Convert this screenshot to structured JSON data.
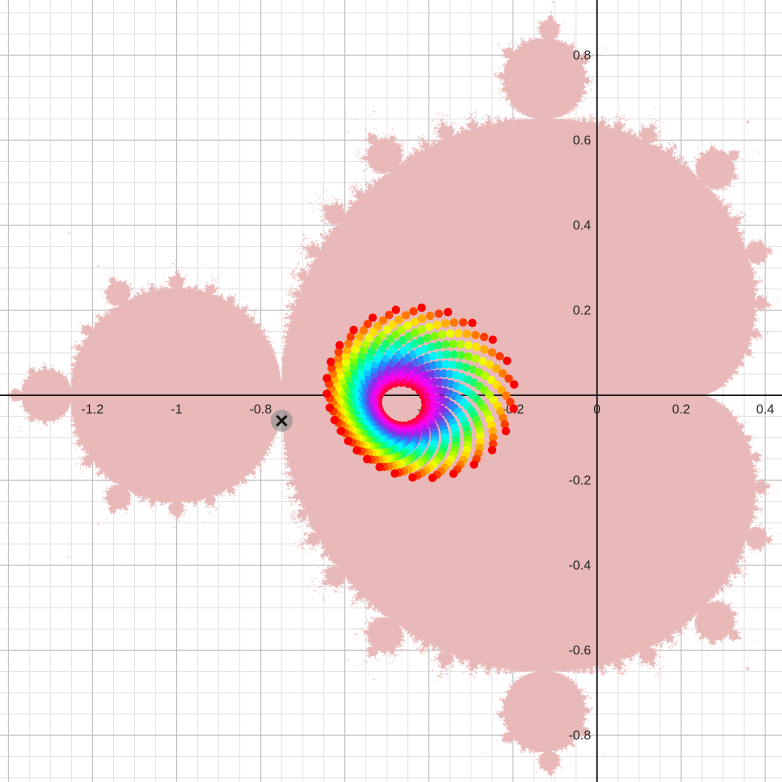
{
  "chart_data": {
    "type": "scatter",
    "title": "",
    "xlabel": "",
    "ylabel": "",
    "xlim": [
      -1.42,
      0.44
    ],
    "ylim": [
      -0.91,
      0.93
    ],
    "grid": "on",
    "x_ticks": [
      "-1.2",
      "-1",
      "-0.8",
      "-0.6",
      "-0.4",
      "-0.2",
      "0",
      "0.2",
      "0.4"
    ],
    "y_ticks": [
      "0.8",
      "0.6",
      "0.4",
      "0.2",
      "-0.2",
      "-0.4",
      "-0.6",
      "-0.8"
    ],
    "tick_values_x": [
      -1.2,
      -1,
      -0.8,
      -0.6,
      -0.4,
      -0.2,
      0,
      0.2,
      0.4
    ],
    "tick_values_y": [
      0.8,
      0.6,
      0.4,
      0.2,
      -0.2,
      -0.4,
      -0.6,
      -0.8
    ],
    "region": {
      "description_type": "mandelbrot-set",
      "fill_color": "#e9b8b8"
    },
    "marker": {
      "point": [
        -0.75,
        -0.06
      ],
      "icon": "cross-icon",
      "color": "#888888"
    },
    "spiral_points": {
      "center": [
        -0.48,
        -0.03
      ],
      "ring_count": 22,
      "points_per_ring": 28,
      "color_scale": [
        "#ff0000",
        "#ff8c00",
        "#ffff00",
        "#7cfc00",
        "#00ff7f",
        "#00ffff",
        "#1e90ff",
        "#8a2be2",
        "#ff00ff",
        "#ff0033"
      ]
    }
  }
}
